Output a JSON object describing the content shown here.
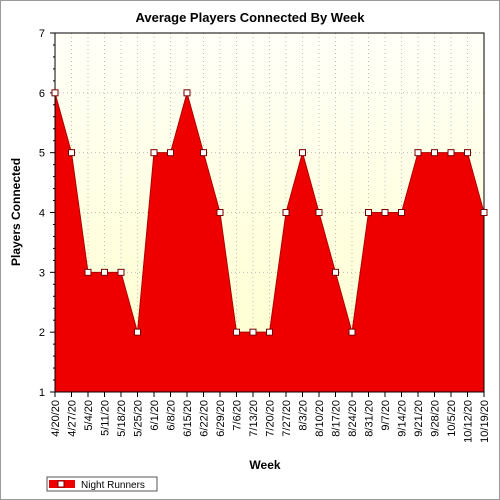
{
  "chart_data": {
    "type": "area",
    "title": "Average Players Connected By Week",
    "xlabel": "Week",
    "ylabel": "Players Connected",
    "ylim": [
      1,
      7
    ],
    "yticks": [
      1,
      2,
      3,
      4,
      5,
      6,
      7
    ],
    "grid": true,
    "legend_position": "bottom-left",
    "colors": {
      "fill": "#ee0000",
      "line": "#b00000",
      "marker_fill": "#ffffff",
      "marker_stroke": "#7a0000",
      "plot_bg_top": "#fffff8",
      "plot_bg_bottom": "#ffffcc",
      "grid": "#bdbdbd"
    },
    "categories": [
      "4/20/20",
      "4/27/20",
      "5/4/20",
      "5/11/20",
      "5/18/20",
      "5/25/20",
      "6/1/20",
      "6/8/20",
      "6/15/20",
      "6/22/20",
      "6/29/20",
      "7/6/20",
      "7/13/20",
      "7/20/20",
      "7/27/20",
      "8/3/20",
      "8/10/20",
      "8/17/20",
      "8/24/20",
      "8/31/20",
      "9/7/20",
      "9/14/20",
      "9/21/20",
      "9/28/20",
      "10/5/20",
      "10/12/20",
      "10/19/20"
    ],
    "series": [
      {
        "name": "Night Runners",
        "values": [
          6,
          5,
          3,
          3,
          3,
          2,
          5,
          5,
          6,
          5,
          4,
          2,
          2,
          2,
          4,
          5,
          4,
          3,
          2,
          4,
          4,
          4,
          5,
          5,
          5,
          5,
          4
        ]
      }
    ]
  }
}
